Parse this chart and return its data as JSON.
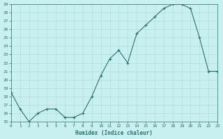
{
  "x": [
    0,
    1,
    2,
    3,
    4,
    5,
    6,
    7,
    8,
    9,
    10,
    11,
    12,
    13,
    14,
    15,
    16,
    17,
    18,
    19,
    20,
    21,
    22,
    23
  ],
  "y": [
    18.5,
    16.5,
    15.0,
    16.0,
    16.5,
    16.5,
    15.5,
    15.5,
    16.0,
    18.0,
    20.5,
    22.5,
    23.5,
    22.0,
    25.5,
    26.5,
    27.5,
    28.5,
    29.0,
    29.0,
    28.5,
    25.0,
    21.0,
    21.0
  ],
  "xlabel": "Humidex (Indice chaleur)",
  "ylim": [
    15,
    29
  ],
  "xlim": [
    0,
    23
  ],
  "yticks": [
    15,
    16,
    17,
    18,
    19,
    20,
    21,
    22,
    23,
    24,
    25,
    26,
    27,
    28,
    29
  ],
  "xticks": [
    0,
    1,
    2,
    3,
    4,
    5,
    6,
    7,
    8,
    9,
    10,
    11,
    12,
    13,
    14,
    15,
    16,
    17,
    18,
    19,
    20,
    21,
    22,
    23
  ],
  "line_color": "#2d7070",
  "bg_color": "#c8f0f0",
  "grid_color": "#b0dede",
  "xlabel_color": "#2d7070",
  "tick_color": "#2d7070",
  "axis_color": "#2d7070"
}
